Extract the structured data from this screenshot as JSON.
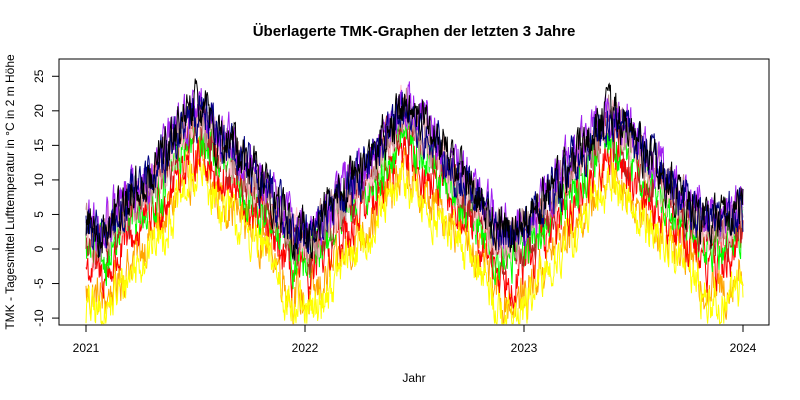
{
  "chart_data": {
    "type": "line",
    "title": "Überlagerte TMK-Graphen der letzten 3 Jahre",
    "xlabel": "Jahr",
    "ylabel": "TMK - Tagesmittel Lufttemperatur in °C in 2 m Höhe",
    "x_ticks": [
      "2021",
      "2022",
      "2023",
      "2024"
    ],
    "y_ticks": [
      -10,
      -5,
      0,
      5,
      10,
      15,
      20,
      25
    ],
    "xlim": [
      "2021-01-01",
      "2024-01-01"
    ],
    "ylim": [
      -11,
      27.5
    ],
    "grid": false,
    "legend": "none",
    "series_colors": [
      "#ffa500",
      "#ffff00",
      "#ff0000",
      "#00ff00",
      "#b22222",
      "#ffc0cb",
      "#bc8f8f",
      "#a020f0",
      "#000080",
      "#000000"
    ],
    "series": [
      {
        "values": [
          -6.5,
          -7.5,
          -3.5,
          0.5,
          3.5,
          8.5,
          12.5,
          8,
          5.5,
          3,
          -0.5,
          -7,
          -7.5,
          -3.5,
          0.5,
          3.5,
          7.5,
          11.5,
          7.5,
          5,
          2.5,
          -1,
          -7,
          -8,
          -4,
          0.5,
          3.5,
          7.5,
          11.5,
          8,
          4.5,
          2,
          -0.5,
          -5.5,
          -6,
          -2.5
        ]
      },
      {
        "values": [
          -8.5,
          -9.5,
          -5,
          -1,
          2,
          7,
          11,
          7,
          4,
          1.5,
          -2,
          -9,
          -10,
          -5.5,
          -1,
          2,
          6,
          10,
          6,
          3.5,
          1,
          -2.5,
          -9,
          -10,
          -6,
          -1,
          2,
          6,
          10,
          6.5,
          3,
          0.5,
          -2,
          -7.5,
          -8,
          -4.5
        ]
      },
      {
        "values": [
          -2.5,
          -4,
          0,
          3.5,
          6.5,
          11.5,
          15,
          11,
          8,
          5,
          1.5,
          -3.5,
          -4,
          0,
          3.5,
          6.5,
          10.5,
          15,
          11,
          8,
          5,
          1,
          -3,
          -4,
          0,
          3.5,
          7,
          11,
          14,
          11,
          7.5,
          4,
          1.5,
          -2,
          -2,
          1
        ]
      },
      {
        "values": [
          0,
          -1.5,
          2.5,
          5.5,
          8.5,
          13.5,
          17,
          13,
          10,
          7,
          3.5,
          -1,
          -1.5,
          2,
          5.5,
          8.5,
          12.5,
          17,
          13.5,
          10,
          7,
          3,
          -1,
          -1.5,
          2,
          5.5,
          9,
          13,
          16,
          13,
          9.5,
          6,
          3.5,
          0.5,
          0.5,
          3
        ]
      },
      {
        "values": [
          1.5,
          0,
          4,
          7,
          10,
          15,
          18.5,
          14.5,
          11.5,
          8.5,
          5,
          1,
          0,
          3.5,
          7,
          10,
          14,
          18.5,
          15,
          11.5,
          8.5,
          4.5,
          0.5,
          0,
          3.5,
          7,
          10.5,
          14.5,
          17.5,
          14.5,
          11,
          7.5,
          5,
          2,
          2,
          4.5
        ]
      },
      {
        "values": [
          2.5,
          1,
          5,
          8,
          11,
          16,
          19.5,
          15.5,
          12.5,
          9.5,
          6,
          2,
          1,
          4.5,
          8,
          11,
          15,
          20,
          16,
          12.5,
          9.5,
          5.5,
          1.5,
          1,
          4.5,
          8,
          11.5,
          15.5,
          18.5,
          15.5,
          12,
          8.5,
          6,
          3,
          3,
          5.5
        ]
      },
      {
        "values": [
          3,
          1.5,
          5.5,
          8.5,
          11.5,
          16.5,
          20,
          16,
          13,
          10,
          6.5,
          2.5,
          1.5,
          5,
          8.5,
          11.5,
          15.5,
          20.5,
          16.5,
          13,
          10,
          6,
          2,
          1.5,
          5,
          8.5,
          12,
          16,
          19,
          16,
          12.5,
          9,
          6.5,
          3.5,
          3.5,
          6
        ]
      },
      {
        "values": [
          4.5,
          3,
          7,
          10,
          13,
          18,
          21.5,
          17.5,
          14.5,
          11.5,
          8,
          4,
          3,
          6.5,
          10,
          13,
          17,
          22,
          18,
          14.5,
          11.5,
          7.5,
          3.5,
          3,
          6.5,
          10,
          13.5,
          17.5,
          20.5,
          17.5,
          14,
          10.5,
          8,
          5,
          5,
          7.5
        ]
      },
      {
        "values": [
          3.5,
          2,
          6,
          9,
          12,
          17,
          20.5,
          16.5,
          13.5,
          10.5,
          7,
          3,
          2,
          5.5,
          9,
          12,
          16,
          21,
          17,
          13.5,
          10.5,
          6.5,
          2.5,
          2,
          5.5,
          9,
          12.5,
          16.5,
          19.5,
          16.5,
          13,
          9.5,
          7,
          4,
          4,
          6.5
        ]
      },
      {
        "values": [
          4,
          2.5,
          6.5,
          9.5,
          12.5,
          17.5,
          21,
          17,
          14,
          11,
          7.5,
          3.5,
          2.5,
          6,
          9.5,
          12.5,
          16.5,
          21.5,
          17.5,
          14,
          11,
          7,
          3,
          2.5,
          6,
          9.5,
          13,
          17,
          20,
          17,
          13.5,
          10,
          7.5,
          4.5,
          4.5,
          7
        ]
      }
    ]
  }
}
